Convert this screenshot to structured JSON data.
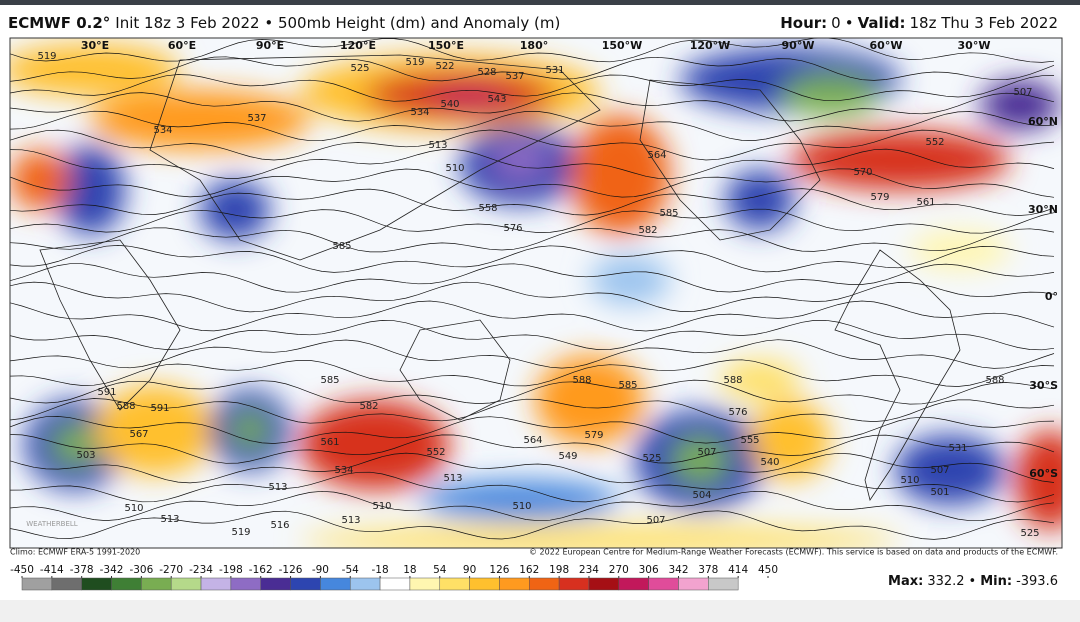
{
  "header": {
    "model": "ECMWF 0.2°",
    "init": "Init 18z 3 Feb 2022 • 500mb Height (dm) and Anomaly (m)",
    "hour_label": "Hour:",
    "hour": "0",
    "sep": "•",
    "valid_label": "Valid:",
    "valid": "18z Thu 3 Feb 2022"
  },
  "map": {
    "lon_labels": [
      "30°E",
      "60°E",
      "90°E",
      "120°E",
      "150°E",
      "180°",
      "150°W",
      "120°W",
      "90°W",
      "60°W",
      "30°W"
    ],
    "lat_labels": [
      "60°N",
      "30°N",
      "0°",
      "30°S",
      "60°S"
    ],
    "contour_labels": [
      "519",
      "525",
      "519",
      "522",
      "528",
      "537",
      "543",
      "531",
      "540",
      "534",
      "537",
      "534",
      "513",
      "510",
      "558",
      "576",
      "585",
      "564",
      "585",
      "582",
      "552",
      "570",
      "579",
      "561",
      "507",
      "588",
      "531",
      "507",
      "510",
      "501",
      "525",
      "507",
      "504",
      "525",
      "540",
      "555",
      "576",
      "588",
      "579",
      "588",
      "585",
      "564",
      "549",
      "510",
      "507",
      "534",
      "561",
      "552",
      "513",
      "582",
      "585",
      "513",
      "516",
      "519",
      "513",
      "510",
      "513",
      "510",
      "591",
      "588",
      "591",
      "567",
      "503"
    ],
    "logo": "WEATHERBELL"
  },
  "footer": {
    "climo": "Climo: ECMWF ERA-5 1991-2020",
    "copyright": "© 2022 European Centre for Medium-Range Weather Forecasts (ECMWF). This service is based on data and products of the ECMWF."
  },
  "colorbar": {
    "ticks": [
      -450,
      -414,
      -378,
      -342,
      -306,
      -270,
      -234,
      -198,
      -162,
      -126,
      -90,
      -54,
      -18,
      18,
      54,
      90,
      126,
      162,
      198,
      234,
      270,
      306,
      342,
      378,
      414,
      450
    ],
    "colors": [
      "#a0a0a0",
      "#6e6e6e",
      "#1f4d1f",
      "#3f7f35",
      "#79ad52",
      "#b5d98a",
      "#c4b3e6",
      "#8e6cc4",
      "#4a2d94",
      "#2d45b0",
      "#4687dd",
      "#9cc4ee",
      "#ffffff",
      "#fff6b0",
      "#ffe066",
      "#ffc02e",
      "#ff9a1f",
      "#f06414",
      "#d7301f",
      "#a50f15",
      "#c2185b",
      "#e04c9a",
      "#f2a3cf",
      "#c8c8c8"
    ]
  },
  "stats": {
    "max_label": "Max:",
    "max": 332.2,
    "sep": "•",
    "min_label": "Min:",
    "min": -393.6
  }
}
